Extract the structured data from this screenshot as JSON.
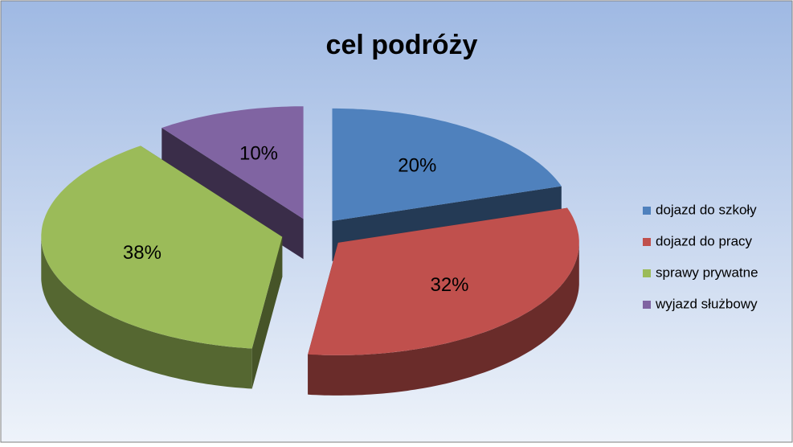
{
  "chart_data": {
    "type": "pie",
    "title": "cel podróży",
    "categories": [
      "dojazd do szkoły",
      "dojazd do pracy",
      "sprawy prywatne",
      "wyjazd służbowy"
    ],
    "values": [
      20,
      32,
      38,
      10
    ],
    "value_labels": [
      "20%",
      "32%",
      "38%",
      "10%"
    ],
    "colors": [
      "#4f81bd",
      "#c0504d",
      "#9bbb59",
      "#8064a2"
    ],
    "legend": "right"
  }
}
